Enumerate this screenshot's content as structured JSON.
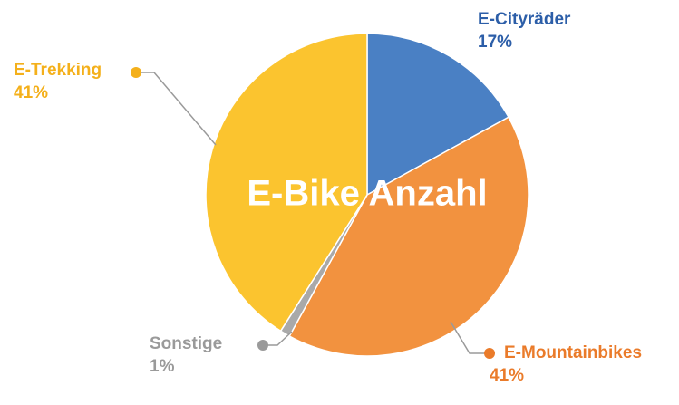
{
  "chart_data": {
    "type": "pie",
    "title": "E-Bike Anzahl",
    "categories": [
      "E-Cityräder",
      "E-Mountainbikes",
      "Sonstige",
      "E-Trekking"
    ],
    "values": [
      17,
      41,
      1,
      41
    ],
    "value_labels": [
      "17%",
      "41%",
      "1%",
      "41%"
    ],
    "colors": [
      "#4a80c4",
      "#f2923f",
      "#a9a9a9",
      "#fbc42f"
    ],
    "label_colors": [
      "#2c5ea8",
      "#ea7b2a",
      "#9a9a9a",
      "#f4b01b"
    ]
  }
}
